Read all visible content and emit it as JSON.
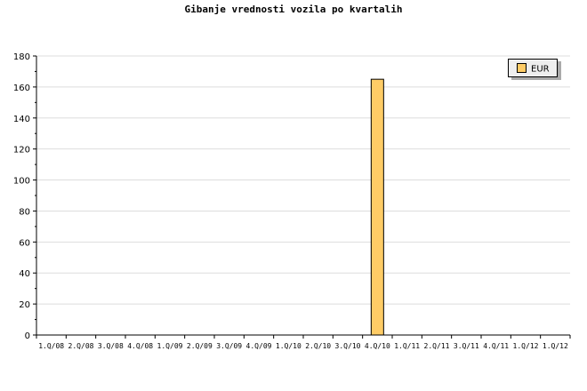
{
  "chart_data": {
    "type": "bar",
    "title": "Gibanje vrednosti vozila po kvartalih",
    "categories": [
      "1.Q/08",
      "2.Q/08",
      "3.Q/08",
      "4.Q/08",
      "1.Q/09",
      "2.Q/09",
      "3.Q/09",
      "4.Q/09",
      "1.Q/10",
      "2.Q/10",
      "3.Q/10",
      "4.Q/10",
      "1.Q/11",
      "2.Q/11",
      "3.Q/11",
      "4.Q/11",
      "1.Q/12",
      "1.Q/12"
    ],
    "series": [
      {
        "name": "EUR",
        "values": [
          0,
          0,
          0,
          0,
          0,
          0,
          0,
          0,
          0,
          0,
          0,
          165,
          0,
          0,
          0,
          0,
          0,
          0
        ],
        "color": "#ffcc66"
      }
    ],
    "ylim": [
      0,
      180
    ],
    "yticks": [
      0,
      20,
      40,
      60,
      80,
      100,
      120,
      140,
      160,
      180
    ],
    "grid": true,
    "legend": "top-right",
    "xlabel": "",
    "ylabel": ""
  }
}
